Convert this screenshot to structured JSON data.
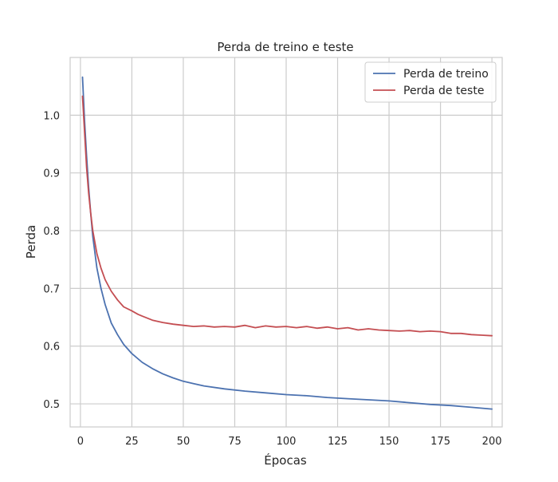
{
  "chart_data": {
    "type": "line",
    "title": "Perda de treino e teste",
    "xlabel": "Épocas",
    "ylabel": "Perda",
    "xlim": [
      -5,
      205
    ],
    "ylim": [
      0.46,
      1.1
    ],
    "xticks": [
      0,
      25,
      50,
      75,
      100,
      125,
      150,
      175,
      200
    ],
    "yticks": [
      0.5,
      0.6,
      0.7,
      0.8,
      0.9,
      1.0
    ],
    "ytick_labels": [
      "0.5",
      "0.6",
      "0.7",
      "0.8",
      "0.9",
      "1.0"
    ],
    "grid": true,
    "legend_position": "top-right",
    "series": [
      {
        "name": "Perda de treino",
        "color": "#4c72b0",
        "x": [
          1,
          2,
          3,
          4,
          5,
          6,
          8,
          10,
          12,
          15,
          18,
          21,
          25,
          30,
          35,
          40,
          45,
          50,
          55,
          60,
          70,
          80,
          90,
          100,
          110,
          120,
          130,
          140,
          150,
          160,
          170,
          180,
          190,
          200
        ],
        "y": [
          1.066,
          0.99,
          0.93,
          0.875,
          0.83,
          0.79,
          0.735,
          0.7,
          0.672,
          0.64,
          0.62,
          0.603,
          0.587,
          0.572,
          0.561,
          0.552,
          0.545,
          0.539,
          0.535,
          0.531,
          0.526,
          0.522,
          0.519,
          0.516,
          0.514,
          0.511,
          0.509,
          0.507,
          0.505,
          0.502,
          0.499,
          0.497,
          0.494,
          0.491
        ]
      },
      {
        "name": "Perda de teste",
        "color": "#c44e52",
        "x": [
          1,
          2,
          3,
          4,
          5,
          6,
          8,
          10,
          12,
          15,
          18,
          21,
          25,
          28,
          30,
          35,
          40,
          45,
          50,
          55,
          60,
          65,
          70,
          75,
          80,
          85,
          90,
          95,
          100,
          105,
          110,
          115,
          120,
          125,
          130,
          135,
          140,
          145,
          150,
          155,
          160,
          165,
          170,
          175,
          180,
          185,
          190,
          195,
          200
        ],
        "y": [
          1.033,
          0.97,
          0.91,
          0.865,
          0.83,
          0.8,
          0.76,
          0.735,
          0.715,
          0.695,
          0.68,
          0.668,
          0.661,
          0.655,
          0.652,
          0.645,
          0.641,
          0.638,
          0.636,
          0.634,
          0.635,
          0.633,
          0.634,
          0.633,
          0.636,
          0.632,
          0.635,
          0.633,
          0.634,
          0.632,
          0.634,
          0.631,
          0.633,
          0.63,
          0.632,
          0.628,
          0.63,
          0.628,
          0.627,
          0.626,
          0.627,
          0.625,
          0.626,
          0.625,
          0.622,
          0.622,
          0.62,
          0.619,
          0.618
        ]
      }
    ]
  }
}
